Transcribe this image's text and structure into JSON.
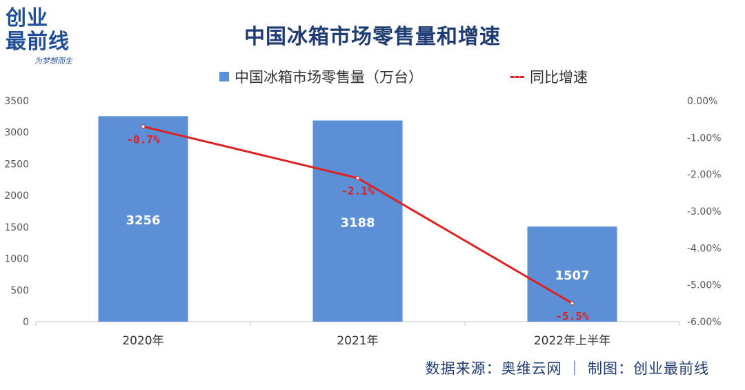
{
  "logo": {
    "line1": "创业",
    "line2": "最前线",
    "slogan": "为梦想而生"
  },
  "colors": {
    "bar": "#5b8fd6",
    "line": "#e02020",
    "title": "#1f3b73",
    "axis_text": "#555555",
    "grid": "#d9d9d9"
  },
  "chart_data": {
    "type": "bar",
    "title": "中国冰箱市场零售量和增速",
    "categories": [
      "2020年",
      "2021年",
      "2022年上半年"
    ],
    "series": [
      {
        "name": "中国冰箱市场零售量（万台）",
        "type": "bar",
        "axis": "left",
        "values": [
          3256,
          3188,
          1507
        ],
        "labels": [
          "3256",
          "3188",
          "1507"
        ]
      },
      {
        "name": "同比增速",
        "type": "line",
        "axis": "right",
        "values": [
          -0.7,
          -2.1,
          -5.5
        ],
        "labels": [
          "-0.7%",
          "-2.1%",
          "-5.5%"
        ]
      }
    ],
    "y_left": {
      "ylim": [
        0,
        3500
      ],
      "ticks": [
        "0",
        "500",
        "1000",
        "1500",
        "2000",
        "2500",
        "3000",
        "3500"
      ]
    },
    "y_right": {
      "ylim": [
        -6,
        0
      ],
      "ticks": [
        "0.00%",
        "-1.00%",
        "-2.00%",
        "-3.00%",
        "-4.00%",
        "-5.00%",
        "-6.00%"
      ]
    },
    "legend_position": "top",
    "grid": false
  },
  "source": "数据来源：奥维云网 ｜ 制图：创业最前线"
}
